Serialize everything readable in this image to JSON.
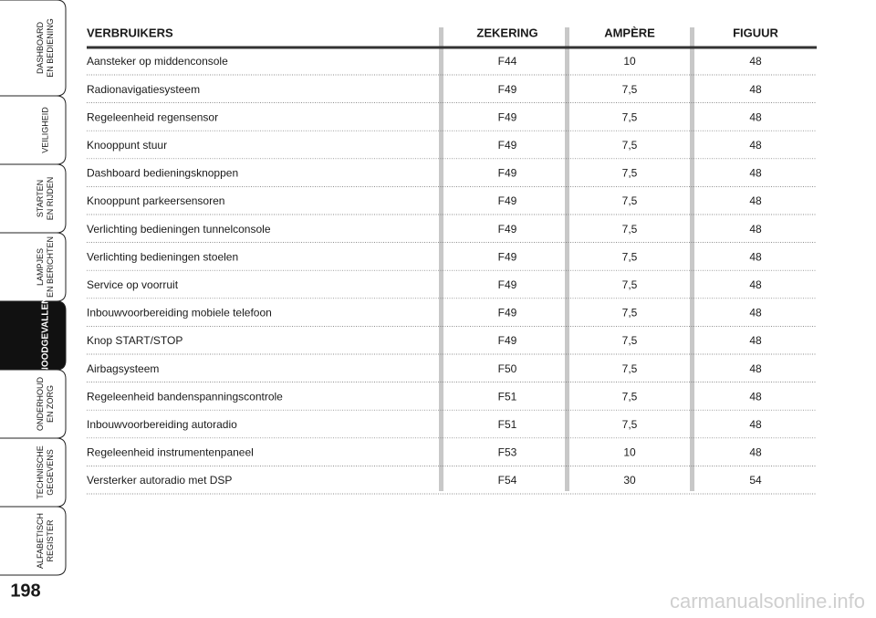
{
  "sidebar": {
    "tabs": [
      {
        "lines": [
          "DASHBOARD",
          "EN BEDIENING"
        ]
      },
      {
        "lines": [
          "VEILIGHEID"
        ]
      },
      {
        "lines": [
          "STARTEN",
          "EN RIJDEN"
        ]
      },
      {
        "lines": [
          "LAMPJES",
          "EN BERICHTEN"
        ]
      },
      {
        "lines": [
          "NOODGEVALLEN"
        ],
        "active": true
      },
      {
        "lines": [
          "ONDERHOUD",
          "EN ZORG"
        ]
      },
      {
        "lines": [
          "TECHNISCHE",
          "GEGEVENS"
        ]
      },
      {
        "lines": [
          "ALFABETISCH",
          "REGISTER"
        ]
      }
    ],
    "page_number": "198"
  },
  "table": {
    "header": [
      "VERBRUIKERS",
      "ZEKERING",
      "AMPÈRE",
      "FIGUUR"
    ],
    "rows": [
      [
        "Aansteker op middenconsole",
        "F44",
        "10",
        "48"
      ],
      [
        "Radionavigatiesysteem",
        "F49",
        "7,5",
        "48"
      ],
      [
        "Regeleenheid regensensor",
        "F49",
        "7,5",
        "48"
      ],
      [
        "Knooppunt stuur",
        "F49",
        "7,5",
        "48"
      ],
      [
        "Dashboard bedieningsknoppen",
        "F49",
        "7,5",
        "48"
      ],
      [
        "Knooppunt parkeersensoren",
        "F49",
        "7,5",
        "48"
      ],
      [
        "Verlichting bedieningen tunnelconsole",
        "F49",
        "7,5",
        "48"
      ],
      [
        "Verlichting bedieningen stoelen",
        "F49",
        "7,5",
        "48"
      ],
      [
        "Service op voorruit",
        "F49",
        "7,5",
        "48"
      ],
      [
        "Inbouwvoorbereiding mobiele telefoon",
        "F49",
        "7,5",
        "48"
      ],
      [
        "Knop START/STOP",
        "F49",
        "7,5",
        "48"
      ],
      [
        "Airbagsysteem",
        "F50",
        "7,5",
        "48"
      ],
      [
        "Regeleenheid bandenspanningscontrole",
        "F51",
        "7,5",
        "48"
      ],
      [
        "Inbouwvoorbereiding autoradio",
        "F51",
        "7,5",
        "48"
      ],
      [
        "Regeleenheid instrumentenpaneel",
        "F53",
        "10",
        "48"
      ],
      [
        "Versterker autoradio met DSP",
        "F54",
        "30",
        "54"
      ]
    ]
  },
  "watermark": "carmanualsonline.info"
}
